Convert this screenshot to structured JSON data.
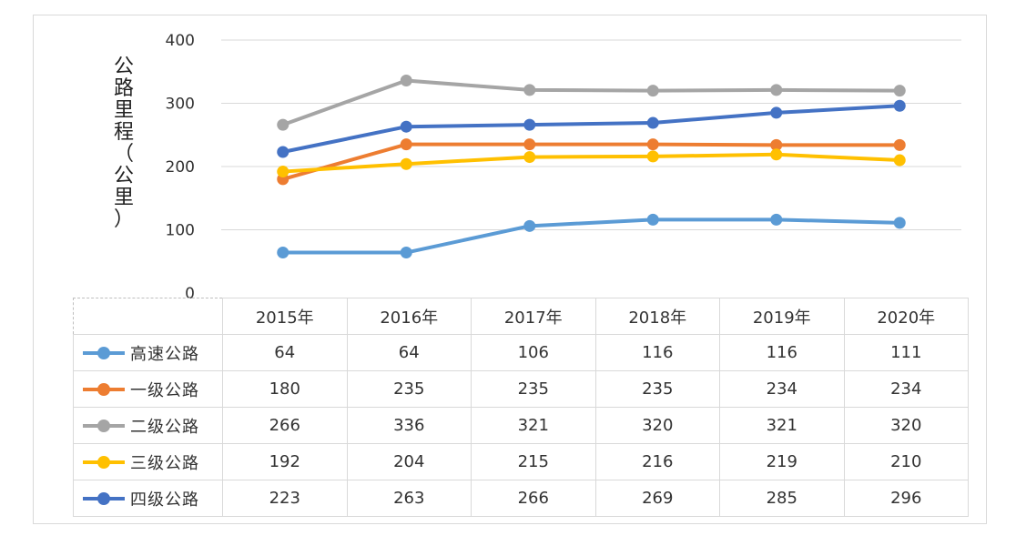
{
  "chart_data": {
    "type": "line",
    "ylabel": "公路里程（公里）",
    "ylim": [
      0,
      400
    ],
    "yticks": [
      0,
      100,
      200,
      300,
      400
    ],
    "grid": true,
    "legend": "data table below plot",
    "categories": [
      "2015年",
      "2016年",
      "2017年",
      "2018年",
      "2019年",
      "2020年"
    ],
    "series": [
      {
        "name": "高速公路",
        "color": "#5b9bd5",
        "values": [
          64,
          64,
          106,
          116,
          116,
          111
        ]
      },
      {
        "name": "一级公路",
        "color": "#ed7d31",
        "values": [
          180,
          235,
          235,
          235,
          234,
          234
        ]
      },
      {
        "name": "二级公路",
        "color": "#a5a5a5",
        "values": [
          266,
          336,
          321,
          320,
          321,
          320
        ]
      },
      {
        "name": "三级公路",
        "color": "#ffc000",
        "values": [
          192,
          204,
          215,
          216,
          219,
          210
        ]
      },
      {
        "name": "四级公路",
        "color": "#4472c4",
        "values": [
          223,
          263,
          266,
          269,
          285,
          296
        ]
      }
    ]
  }
}
